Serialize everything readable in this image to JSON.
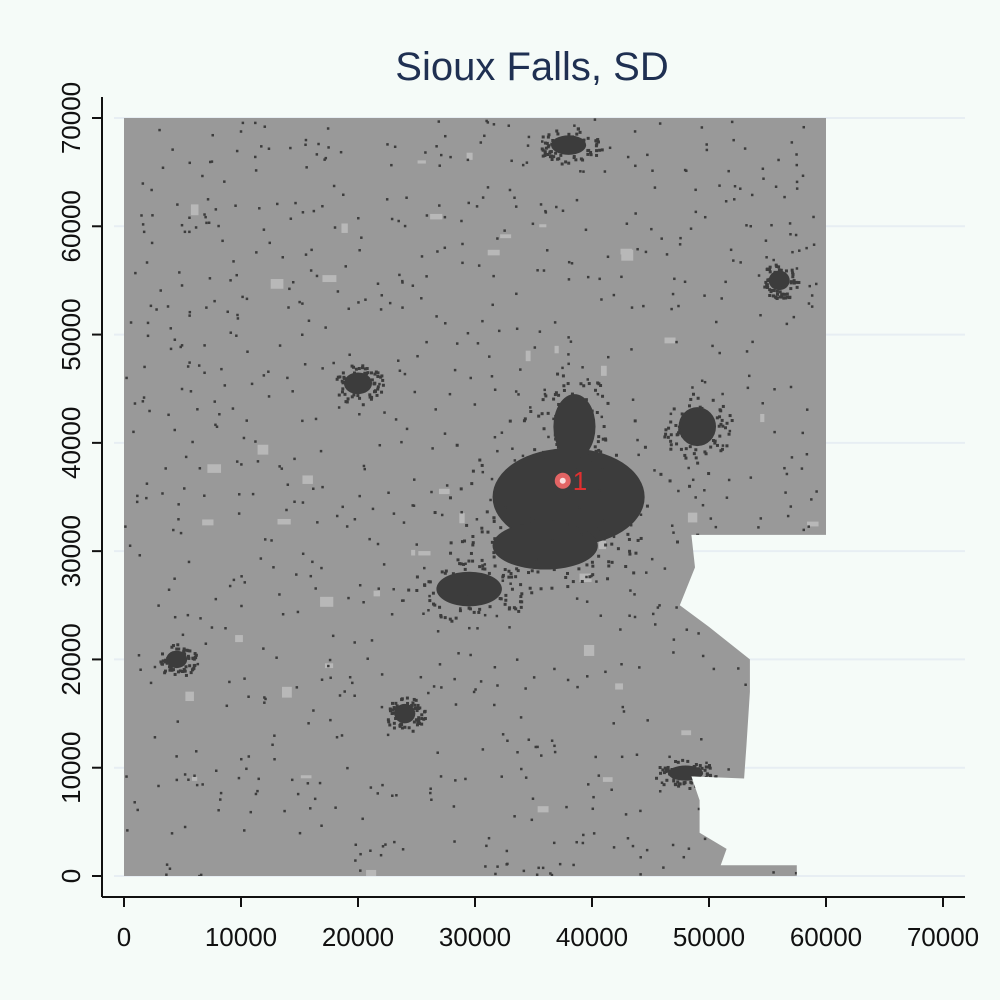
{
  "chart_data": {
    "type": "map",
    "title": "Sioux Falls, SD",
    "xlabel": "",
    "ylabel": "",
    "xlim": [
      0,
      70000
    ],
    "ylim": [
      0,
      70000
    ],
    "x_ticks": [
      0,
      10000,
      20000,
      30000,
      40000,
      50000,
      60000,
      70000
    ],
    "y_ticks": [
      0,
      10000,
      20000,
      30000,
      40000,
      50000,
      60000,
      70000
    ],
    "grid": "horizontal",
    "colors": {
      "background": "#f5fbf8",
      "land": "#999999",
      "urban": "#3c3c3c",
      "light_land": "#b8b8b8",
      "gridline": "#e7eef3",
      "marker": "#ff6b6b",
      "marker_label": "#e03030",
      "title": "#1f3052"
    },
    "study_area_outline": [
      [
        0,
        70000
      ],
      [
        60000,
        70000
      ],
      [
        60000,
        31500
      ],
      [
        48500,
        31500
      ],
      [
        48800,
        28500
      ],
      [
        47500,
        25000
      ],
      [
        50000,
        23000
      ],
      [
        53500,
        20000
      ],
      [
        53500,
        17000
      ],
      [
        53200,
        12000
      ],
      [
        53000,
        9000
      ],
      [
        48500,
        9200
      ],
      [
        49200,
        7000
      ],
      [
        49200,
        4000
      ],
      [
        51500,
        2500
      ],
      [
        51000,
        1000
      ],
      [
        57500,
        1000
      ],
      [
        57500,
        0
      ],
      [
        0,
        0
      ]
    ],
    "urban_areas": [
      {
        "name": "central-city",
        "x": 38000,
        "y": 35000,
        "rx": 6500,
        "ry": 4500
      },
      {
        "name": "south-city",
        "x": 36000,
        "y": 30500,
        "rx": 4500,
        "ry": 2200
      },
      {
        "name": "north-core",
        "x": 38500,
        "y": 41500,
        "rx": 1800,
        "ry": 3000
      },
      {
        "name": "southwest-arm",
        "x": 29500,
        "y": 26500,
        "rx": 2800,
        "ry": 1600
      },
      {
        "name": "east-town",
        "x": 49000,
        "y": 41500,
        "rx": 1600,
        "ry": 1800
      },
      {
        "name": "northwest-town",
        "x": 20000,
        "y": 45500,
        "rx": 1200,
        "ry": 1000
      },
      {
        "name": "north-town",
        "x": 38000,
        "y": 67500,
        "rx": 1500,
        "ry": 900
      },
      {
        "name": "southwest-town",
        "x": 24000,
        "y": 15000,
        "rx": 900,
        "ry": 900
      },
      {
        "name": "west-town",
        "x": 4500,
        "y": 20000,
        "rx": 900,
        "ry": 800
      },
      {
        "name": "southeast-town",
        "x": 48000,
        "y": 9500,
        "rx": 1500,
        "ry": 700
      },
      {
        "name": "east-north-town",
        "x": 56000,
        "y": 55000,
        "rx": 900,
        "ry": 900
      }
    ],
    "markers": [
      {
        "label": "1",
        "x": 37500,
        "y": 36500
      }
    ]
  }
}
